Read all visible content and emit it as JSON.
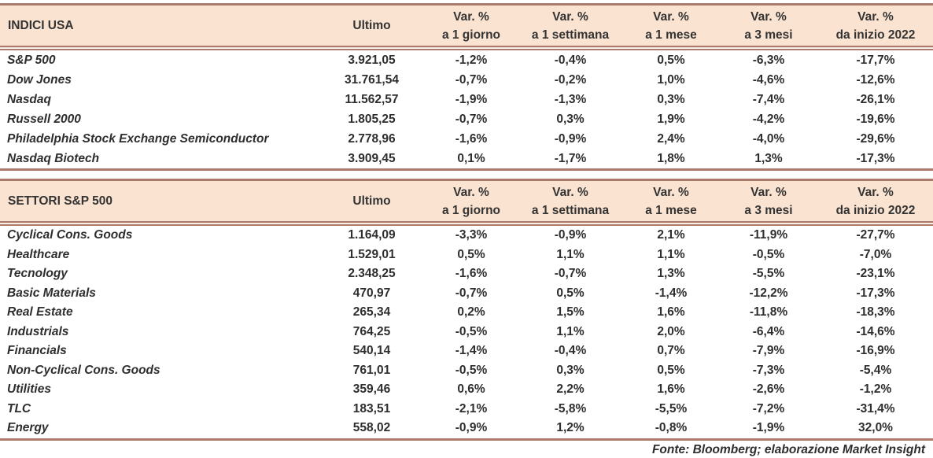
{
  "colors": {
    "header_bg": "#fbe3d1",
    "border": "#ab7a6d",
    "text": "#2e2e2e"
  },
  "indices_table": {
    "title": "INDICI USA",
    "col_ultimo": "Ultimo",
    "var_label": "Var. %",
    "periods": [
      "a 1 giorno",
      "a 1 settimana",
      "a 1 mese",
      "a 3 mesi",
      "da inizio 2022"
    ],
    "rows": [
      {
        "name": "S&P 500",
        "ultimo": "3.921,05",
        "d1": "-1,2%",
        "w1": "-0,4%",
        "m1": "0,5%",
        "m3": "-6,3%",
        "ytd": "-17,7%"
      },
      {
        "name": "Dow Jones",
        "ultimo": "31.761,54",
        "d1": "-0,7%",
        "w1": "-0,2%",
        "m1": "1,0%",
        "m3": "-4,6%",
        "ytd": "-12,6%"
      },
      {
        "name": "Nasdaq",
        "ultimo": "11.562,57",
        "d1": "-1,9%",
        "w1": "-1,3%",
        "m1": "0,3%",
        "m3": "-7,4%",
        "ytd": "-26,1%"
      },
      {
        "name": "Russell 2000",
        "ultimo": "1.805,25",
        "d1": "-0,7%",
        "w1": "0,3%",
        "m1": "1,9%",
        "m3": "-4,2%",
        "ytd": "-19,6%"
      },
      {
        "name": "Philadelphia Stock Exchange Semiconductor",
        "ultimo": "2.778,96",
        "d1": "-1,6%",
        "w1": "-0,9%",
        "m1": "2,4%",
        "m3": "-4,0%",
        "ytd": "-29,6%"
      },
      {
        "name": "Nasdaq Biotech",
        "ultimo": "3.909,45",
        "d1": "0,1%",
        "w1": "-1,7%",
        "m1": "1,8%",
        "m3": "1,3%",
        "ytd": "-17,3%"
      }
    ]
  },
  "sectors_table": {
    "title": "SETTORI S&P 500",
    "col_ultimo": "Ultimo",
    "var_label": "Var. %",
    "periods": [
      "a 1 giorno",
      "a 1 settimana",
      "a 1 mese",
      "a 3 mesi",
      "da inizio 2022"
    ],
    "rows": [
      {
        "name": "Cyclical Cons. Goods",
        "ultimo": "1.164,09",
        "d1": "-3,3%",
        "w1": "-0,9%",
        "m1": "2,1%",
        "m3": "-11,9%",
        "ytd": "-27,7%"
      },
      {
        "name": "Healthcare",
        "ultimo": "1.529,01",
        "d1": "0,5%",
        "w1": "1,1%",
        "m1": "1,1%",
        "m3": "-0,5%",
        "ytd": "-7,0%"
      },
      {
        "name": "Tecnology",
        "ultimo": "2.348,25",
        "d1": "-1,6%",
        "w1": "-0,7%",
        "m1": "1,3%",
        "m3": "-5,5%",
        "ytd": "-23,1%"
      },
      {
        "name": "Basic Materials",
        "ultimo": "470,97",
        "d1": "-0,7%",
        "w1": "0,5%",
        "m1": "-1,4%",
        "m3": "-12,2%",
        "ytd": "-17,3%"
      },
      {
        "name": "Real Estate",
        "ultimo": "265,34",
        "d1": "0,2%",
        "w1": "1,5%",
        "m1": "1,6%",
        "m3": "-11,8%",
        "ytd": "-18,3%"
      },
      {
        "name": "Industrials",
        "ultimo": "764,25",
        "d1": "-0,5%",
        "w1": "1,1%",
        "m1": "2,0%",
        "m3": "-6,4%",
        "ytd": "-14,6%"
      },
      {
        "name": "Financials",
        "ultimo": "540,14",
        "d1": "-1,4%",
        "w1": "-0,4%",
        "m1": "0,7%",
        "m3": "-7,9%",
        "ytd": "-16,9%"
      },
      {
        "name": "Non-Cyclical Cons. Goods",
        "ultimo": "761,01",
        "d1": "-0,5%",
        "w1": "0,3%",
        "m1": "0,5%",
        "m3": "-7,3%",
        "ytd": "-5,4%"
      },
      {
        "name": "Utilities",
        "ultimo": "359,46",
        "d1": "0,6%",
        "w1": "2,2%",
        "m1": "1,6%",
        "m3": "-2,6%",
        "ytd": "-1,2%"
      },
      {
        "name": "TLC",
        "ultimo": "183,51",
        "d1": "-2,1%",
        "w1": "-5,8%",
        "m1": "-5,5%",
        "m3": "-7,2%",
        "ytd": "-31,4%"
      },
      {
        "name": "Energy",
        "ultimo": "558,02",
        "d1": "-0,9%",
        "w1": "1,2%",
        "m1": "-0,8%",
        "m3": "-1,9%",
        "ytd": "32,0%"
      }
    ]
  },
  "footer": "Fonte: Bloomberg; elaborazione Market Insight"
}
